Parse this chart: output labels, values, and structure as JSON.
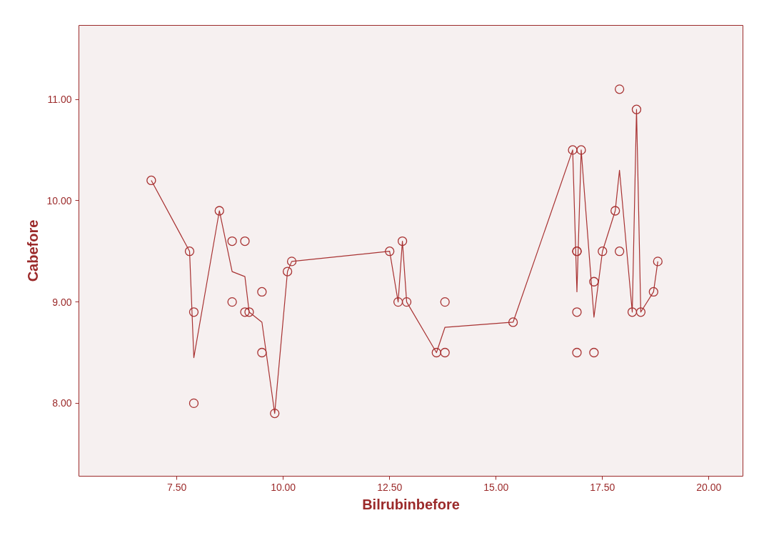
{
  "chart_data": {
    "type": "scatter",
    "xlabel": "Bilrubinbefore",
    "ylabel": "Cabefore",
    "xlim": [
      5.2,
      20.8
    ],
    "ylim": [
      7.28,
      11.73
    ],
    "xticks": [
      {
        "value": 7.5,
        "label": "7.50"
      },
      {
        "value": 10,
        "label": "10.00"
      },
      {
        "value": 12.5,
        "label": "12.50"
      },
      {
        "value": 15,
        "label": "15.00"
      },
      {
        "value": 17.5,
        "label": "17.50"
      },
      {
        "value": 20,
        "label": "20.00"
      }
    ],
    "yticks": [
      {
        "value": 8,
        "label": "8.00"
      },
      {
        "value": 9,
        "label": "9.00"
      },
      {
        "value": 10,
        "label": "10.00"
      },
      {
        "value": 11,
        "label": "11.00"
      }
    ],
    "grid": false,
    "series": [
      {
        "marker": "circle",
        "color": "#a83232",
        "x": [
          6.9,
          7.8,
          7.9,
          7.9,
          8.5,
          8.8,
          8.8,
          9.1,
          9.1,
          9.2,
          9.5,
          9.5,
          9.8,
          10.1,
          10.2,
          12.5,
          12.7,
          12.8,
          12.9,
          13.6,
          13.8,
          13.8,
          15.4,
          16.8,
          16.9,
          16.9,
          16.9,
          16.9,
          17.0,
          17.3,
          17.3,
          17.5,
          17.8,
          17.9,
          17.9,
          18.2,
          18.3,
          18.4,
          18.7,
          18.8
        ],
        "values": [
          10.2,
          9.5,
          8.9,
          8.0,
          9.9,
          9.6,
          9.0,
          9.6,
          8.9,
          8.9,
          9.1,
          8.5,
          7.9,
          9.3,
          9.4,
          9.5,
          9.0,
          9.6,
          9.0,
          8.5,
          9.0,
          8.5,
          8.8,
          10.5,
          9.5,
          9.5,
          8.9,
          8.5,
          10.5,
          9.2,
          8.5,
          9.5,
          9.9,
          11.1,
          9.5,
          8.9,
          10.9,
          8.9,
          9.1,
          9.4
        ]
      },
      {
        "type": "line",
        "marker": "none",
        "line_style": "solid",
        "color": "#a83232",
        "x": [
          6.9,
          7.8,
          7.9,
          8.5,
          8.8,
          9.1,
          9.2,
          9.5,
          9.8,
          10.1,
          10.2,
          12.5,
          12.7,
          12.8,
          12.9,
          13.6,
          13.8,
          15.4,
          16.8,
          16.9,
          17.0,
          17.3,
          17.5,
          17.8,
          17.9,
          18.2,
          18.3,
          18.4,
          18.7,
          18.8
        ],
        "values": [
          10.2,
          9.5,
          8.45,
          9.9,
          9.3,
          9.25,
          8.9,
          8.8,
          7.9,
          9.3,
          9.4,
          9.5,
          9.0,
          9.6,
          9.0,
          8.5,
          8.75,
          8.8,
          10.5,
          9.1,
          10.5,
          8.85,
          9.5,
          9.9,
          10.3,
          8.9,
          10.9,
          8.9,
          9.1,
          9.4
        ]
      }
    ]
  }
}
